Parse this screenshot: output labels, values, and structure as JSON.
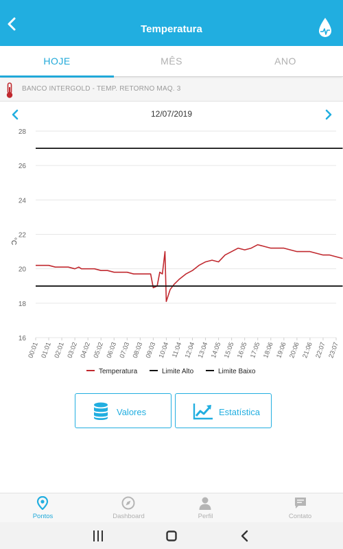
{
  "header": {
    "title": "Temperatura",
    "back_icon": "chevron-left-icon",
    "logo_icon": "water-drop-chart-icon"
  },
  "tabs": [
    {
      "label": "HOJE",
      "active": true
    },
    {
      "label": "MÊS",
      "active": false
    },
    {
      "label": "ANO",
      "active": false
    }
  ],
  "point": {
    "name": "BANCO INTERGOLD - TEMP. RETORNO MAQ. 3",
    "icon": "thermometer-icon"
  },
  "date_nav": {
    "date": "12/07/2019",
    "prev_icon": "chevron-left-icon",
    "next_icon": "chevron-right-icon"
  },
  "chart_data": {
    "type": "line",
    "title": "",
    "xlabel": "",
    "ylabel": "°C",
    "ylim": [
      16,
      28
    ],
    "yticks": [
      16,
      18,
      20,
      22,
      24,
      26,
      28
    ],
    "xtick_labels": [
      "00:01",
      "01:01",
      "02:01",
      "03:02",
      "04:02",
      "05:02",
      "06:03",
      "07:03",
      "08:03",
      "09:03",
      "10:04",
      "11:04",
      "12:04",
      "13:04",
      "14:05",
      "15:05",
      "16:05",
      "17:05",
      "18:06",
      "19:06",
      "20:06",
      "21:06",
      "22:07",
      "23:07"
    ],
    "grid": true,
    "legend_position": "bottom",
    "series": [
      {
        "name": "Temperatura",
        "color": "#c0282e",
        "x": [
          0,
          0.5,
          1,
          1.5,
          2,
          2.5,
          3,
          3.3,
          3.5,
          4,
          4.5,
          5,
          5.5,
          6,
          6.5,
          7,
          7.5,
          8,
          8.5,
          8.8,
          9,
          9.3,
          9.5,
          9.7,
          9.9,
          10,
          10.3,
          10.6,
          11,
          11.5,
          12,
          12.5,
          13,
          13.5,
          14,
          14.5,
          15,
          15.5,
          16,
          16.5,
          17,
          17.5,
          18,
          18.5,
          19,
          19.5,
          20,
          20.5,
          21,
          21.5,
          22,
          22.5,
          23,
          23.5
        ],
        "y": [
          20.2,
          20.2,
          20.2,
          20.1,
          20.1,
          20.1,
          20.0,
          20.1,
          20.0,
          20.0,
          20.0,
          19.9,
          19.9,
          19.8,
          19.8,
          19.8,
          19.7,
          19.7,
          19.7,
          19.7,
          18.9,
          19.0,
          19.8,
          19.7,
          21.0,
          18.1,
          18.8,
          19.1,
          19.4,
          19.7,
          19.9,
          20.2,
          20.4,
          20.5,
          20.4,
          20.8,
          21.0,
          21.2,
          21.1,
          21.2,
          21.4,
          21.3,
          21.2,
          21.2,
          21.2,
          21.1,
          21.0,
          21.0,
          21.0,
          20.9,
          20.8,
          20.8,
          20.7,
          20.6
        ]
      },
      {
        "name": "Limite Alto",
        "color": "#111111",
        "x": [
          0,
          23.5
        ],
        "y": [
          27,
          27
        ]
      },
      {
        "name": "Limite Baixo",
        "color": "#111111",
        "x": [
          0,
          23.5
        ],
        "y": [
          19,
          19
        ]
      }
    ]
  },
  "actions": {
    "values": {
      "label": "Valores",
      "icon": "database-icon"
    },
    "stats": {
      "label": "Estatística",
      "icon": "trend-chart-icon"
    }
  },
  "bottom_nav": [
    {
      "label": "Pontos",
      "icon": "location-pin-icon",
      "active": true
    },
    {
      "label": "Dashboard",
      "icon": "compass-icon",
      "active": false
    },
    {
      "label": "Perfil",
      "icon": "user-icon",
      "active": false
    },
    {
      "label": "Contato",
      "icon": "chat-icon",
      "active": false
    }
  ],
  "system_nav": {
    "recents_icon": "recents-icon",
    "home_icon": "home-square-icon",
    "back_icon": "back-arrow-icon"
  },
  "colors": {
    "primary": "#21aee0",
    "series_line": "#c0282e",
    "limit_line": "#111111"
  }
}
